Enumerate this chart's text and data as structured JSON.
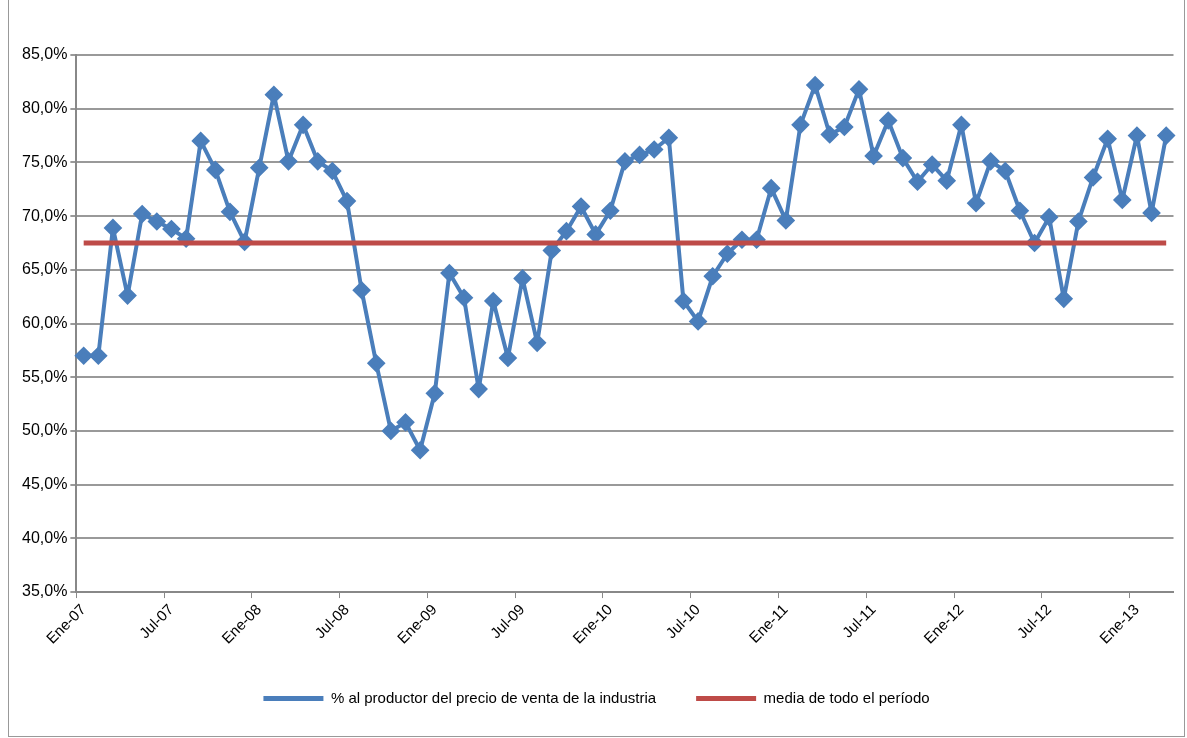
{
  "chart_data": {
    "type": "line",
    "categories": [
      "Ene-07",
      null,
      null,
      null,
      null,
      null,
      "Jul-07",
      null,
      null,
      null,
      null,
      null,
      "Ene-08",
      null,
      null,
      null,
      null,
      null,
      "Jul-08",
      null,
      null,
      null,
      null,
      null,
      "Ene-09",
      null,
      null,
      null,
      null,
      null,
      "Jul-09",
      null,
      null,
      null,
      null,
      null,
      "Ene-10",
      null,
      null,
      null,
      null,
      null,
      "Jul-10",
      null,
      null,
      null,
      null,
      null,
      "Ene-11",
      null,
      null,
      null,
      null,
      null,
      "Jul-11",
      null,
      null,
      null,
      null,
      null,
      "Ene-12",
      null,
      null,
      null,
      null,
      null,
      "Jul-12",
      null,
      null,
      null,
      null,
      null,
      "Ene-13",
      null,
      null
    ],
    "series": [
      {
        "name": "% al productor del precio de venta de la industria",
        "color": "#4a7ebb",
        "marker": "diamond",
        "values": [
          57.0,
          57.0,
          68.9,
          62.6,
          70.2,
          69.5,
          68.8,
          67.9,
          77.0,
          74.3,
          70.4,
          67.6,
          74.5,
          81.3,
          75.1,
          78.5,
          75.1,
          74.2,
          71.4,
          63.1,
          56.3,
          50.0,
          50.8,
          48.2,
          53.5,
          64.7,
          62.4,
          53.9,
          62.1,
          56.8,
          64.2,
          58.2,
          66.8,
          68.6,
          70.9,
          68.3,
          70.5,
          75.1,
          75.7,
          76.2,
          77.3,
          62.1,
          60.2,
          64.4,
          66.5,
          67.8,
          67.8,
          72.6,
          69.6,
          78.5,
          82.2,
          77.6,
          78.3,
          81.8,
          75.6,
          78.9,
          75.4,
          73.2,
          74.8,
          73.3,
          78.5,
          71.2,
          75.1,
          74.2,
          70.5,
          67.5,
          69.9,
          62.3,
          69.5,
          73.6,
          77.2,
          71.5,
          77.5,
          70.3,
          77.5
        ]
      },
      {
        "name": "media de todo el período",
        "color": "#be4b48",
        "marker": "none",
        "values": [
          67.5,
          67.5,
          67.5,
          67.5,
          67.5,
          67.5,
          67.5,
          67.5,
          67.5,
          67.5,
          67.5,
          67.5,
          67.5,
          67.5,
          67.5,
          67.5,
          67.5,
          67.5,
          67.5,
          67.5,
          67.5,
          67.5,
          67.5,
          67.5,
          67.5,
          67.5,
          67.5,
          67.5,
          67.5,
          67.5,
          67.5,
          67.5,
          67.5,
          67.5,
          67.5,
          67.5,
          67.5,
          67.5,
          67.5,
          67.5,
          67.5,
          67.5,
          67.5,
          67.5,
          67.5,
          67.5,
          67.5,
          67.5,
          67.5,
          67.5,
          67.5,
          67.5,
          67.5,
          67.5,
          67.5,
          67.5,
          67.5,
          67.5,
          67.5,
          67.5,
          67.5,
          67.5,
          67.5,
          67.5,
          67.5,
          67.5,
          67.5,
          67.5,
          67.5,
          67.5,
          67.5,
          67.5,
          67.5,
          67.5,
          67.5
        ]
      }
    ],
    "ylim": [
      35,
      85
    ],
    "yticks": [
      {
        "value": 35,
        "label": "35,0%"
      },
      {
        "value": 40,
        "label": "40,0%"
      },
      {
        "value": 45,
        "label": "45,0%"
      },
      {
        "value": 50,
        "label": "50,0%"
      },
      {
        "value": 55,
        "label": "55,0%"
      },
      {
        "value": 60,
        "label": "60,0%"
      },
      {
        "value": 65,
        "label": "65,0%"
      },
      {
        "value": 70,
        "label": "70,0%"
      },
      {
        "value": 75,
        "label": "75,0%"
      },
      {
        "value": 80,
        "label": "80,0%"
      },
      {
        "value": 85,
        "label": "85,0%"
      }
    ],
    "grid": "y",
    "legend": "bottom",
    "line_style": "solid"
  }
}
